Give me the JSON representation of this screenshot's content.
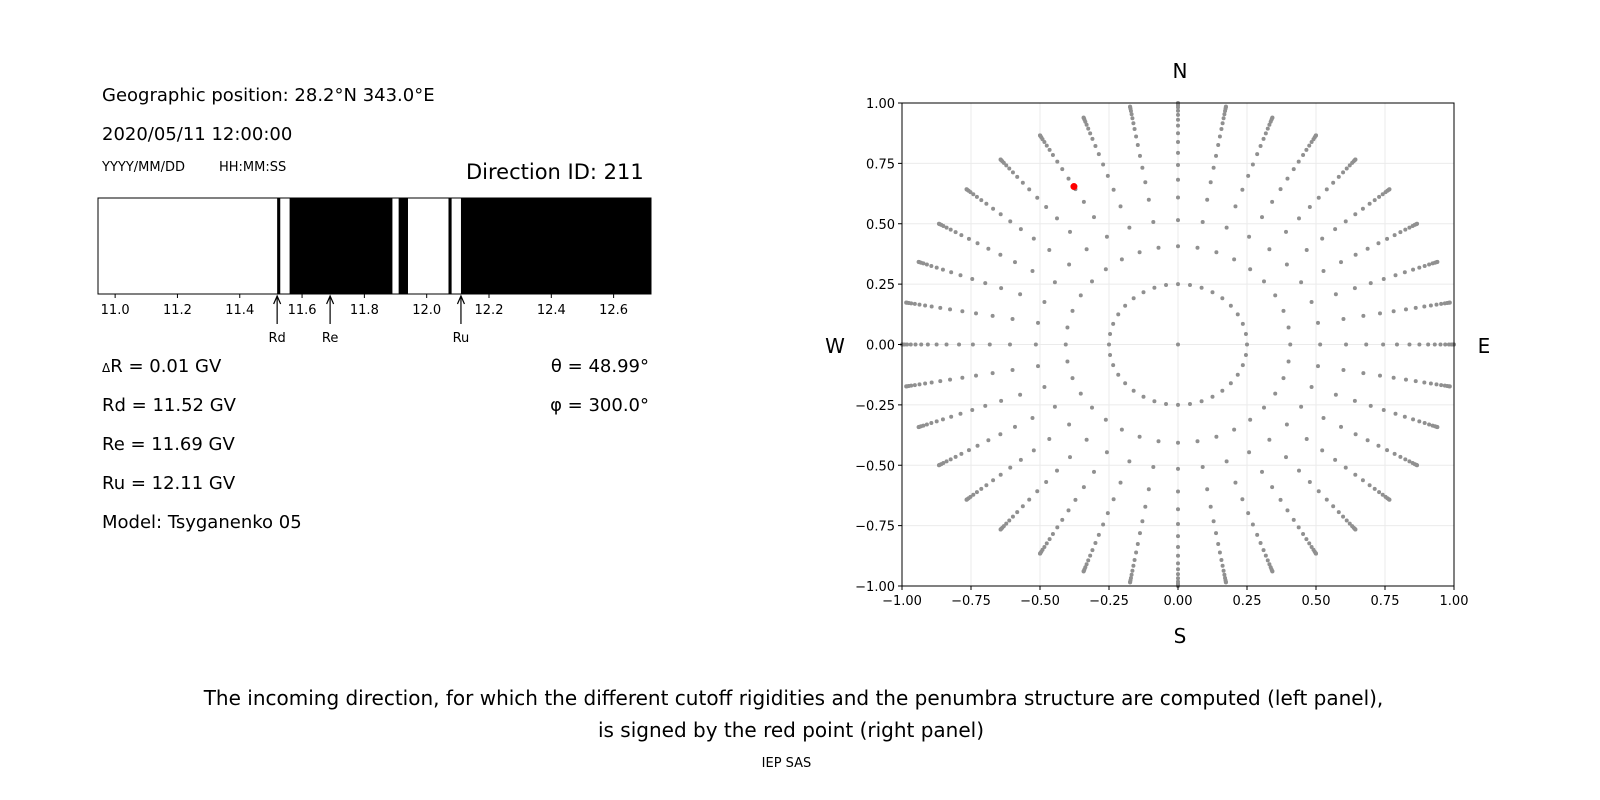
{
  "left_panel": {
    "position": "Geographic position: 28.2°N 343.0°E",
    "datetime": "2020/05/11 12:00:00",
    "date_format": "YYYY/MM/DD",
    "time_format": "HH:MM:SS",
    "direction_id": "Direction ID: 211",
    "delta_r": "R = 0.01 GV",
    "delta_symbol": "Δ",
    "rd": "Rd = 11.52 GV",
    "re": "Re = 11.69 GV",
    "ru": "Ru = 12.11 GV",
    "model": "Model: Tsyganenko 05",
    "theta": "θ = 48.99°",
    "phi": "φ = 300.0°"
  },
  "chart_data": [
    {
      "type": "bar",
      "description_role": "penumbra",
      "xlim": [
        10.945,
        12.72
      ],
      "xticks": [
        "11.0",
        "11.2",
        "11.4",
        "11.6",
        "11.8",
        "12.0",
        "12.2",
        "12.4",
        "12.6"
      ],
      "forbidden_segments": [
        [
          11.52,
          11.53
        ],
        [
          11.56,
          11.89
        ],
        [
          11.91,
          11.94
        ],
        [
          12.07,
          12.08
        ],
        [
          12.11,
          12.72
        ]
      ],
      "colors": {
        "forbidden": "#000000",
        "allowed": "#ffffff"
      },
      "annotations": [
        {
          "label": "Rd",
          "x": 11.52
        },
        {
          "label": "Re",
          "x": 11.69
        },
        {
          "label": "Ru",
          "x": 12.11
        }
      ]
    },
    {
      "type": "scatter",
      "xlim": [
        -1,
        1
      ],
      "ylim": [
        -1,
        1
      ],
      "grid": true,
      "xticks": [
        "−1.00",
        "−0.75",
        "−0.50",
        "−0.25",
        "0.00",
        "0.25",
        "0.50",
        "0.75",
        "1.00"
      ],
      "yticks": [
        "−1.00",
        "−0.75",
        "−0.50",
        "−0.25",
        "0.00",
        "0.25",
        "0.50",
        "0.75",
        "1.00"
      ],
      "compass": {
        "n": "N",
        "s": "S",
        "w": "W",
        "e": "E"
      },
      "grid_points": {
        "azimuth_step_deg": 10,
        "inner_ring_radius": 0.25,
        "inner_ring_step_deg": 10,
        "spoke_zenith_deg": [
          24,
          31,
          37.5,
          43,
          48,
          52.5,
          57,
          61,
          65,
          68.5,
          72,
          75.5,
          79,
          82,
          85,
          88,
          90
        ],
        "center": [
          0,
          0
        ],
        "color": "#909090"
      },
      "selected_point": {
        "x": -0.377,
        "y": 0.654,
        "color": "#ff0000"
      }
    }
  ],
  "caption": {
    "line1": "The incoming direction, for which the different cutoff rigidities and the penumbra structure are computed (left panel),",
    "line2": "is signed by the red point (right panel)",
    "credit": "IEP SAS"
  }
}
